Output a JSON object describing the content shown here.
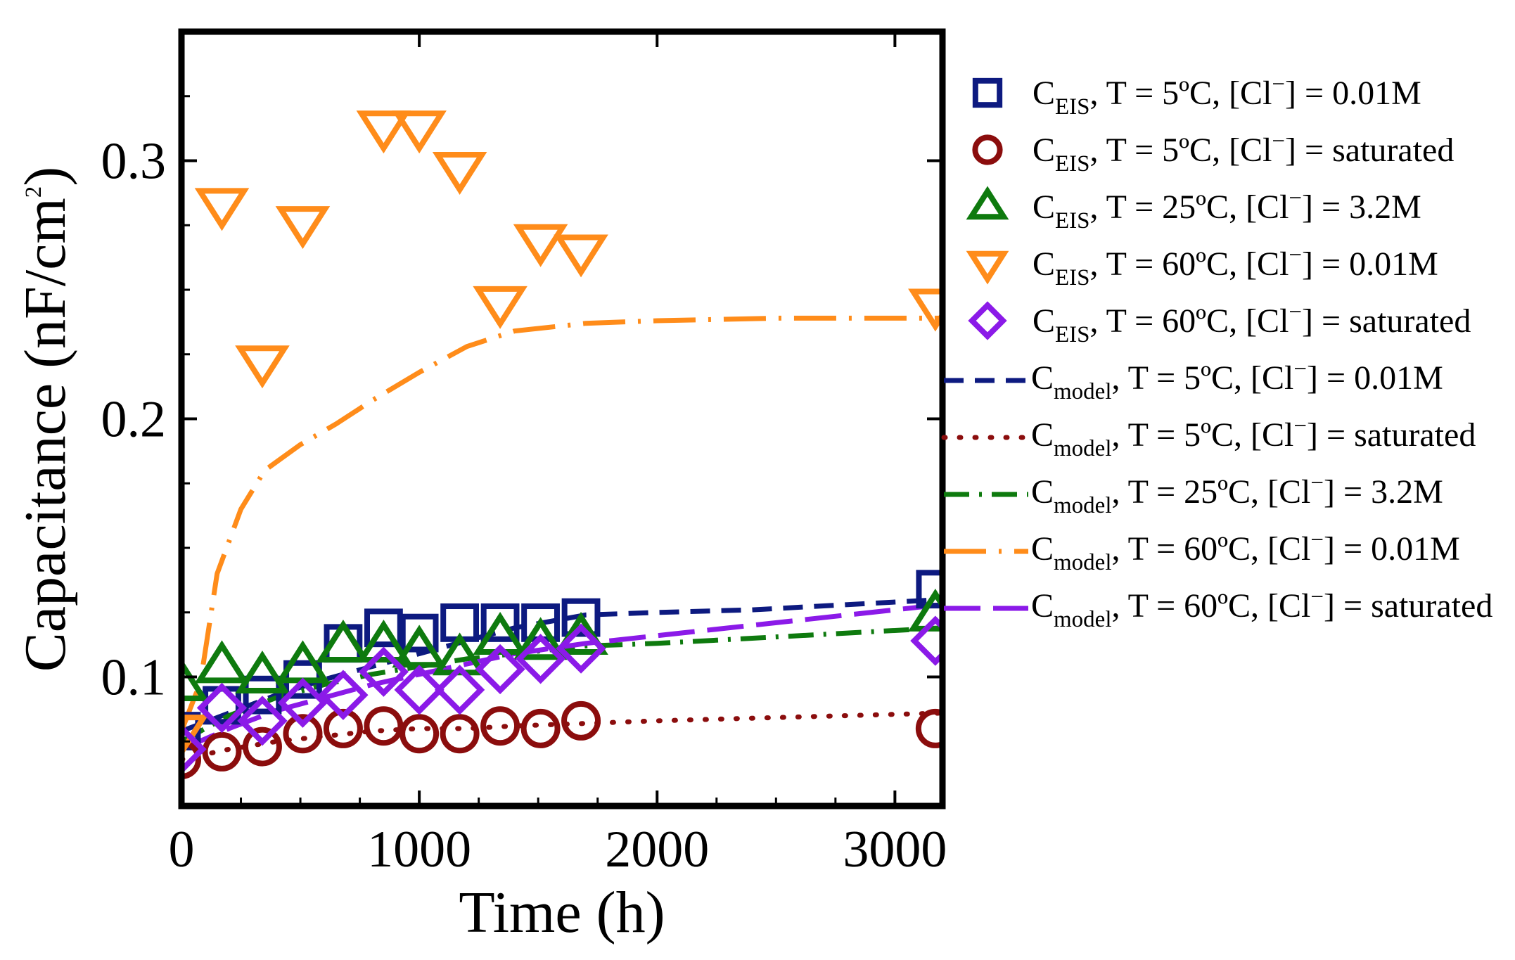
{
  "chart_data": {
    "type": "scatter",
    "xlabel": "Time (h)",
    "ylabel_main": "Capacitance (nF/cm",
    "ylabel_sup": "2",
    "ylabel_end": ")",
    "xlim": [
      0,
      3200
    ],
    "ylim": [
      0.05,
      0.35
    ],
    "xticks": [
      0,
      1000,
      2000,
      3000
    ],
    "xtick_labels": [
      "0",
      "1000",
      "2000",
      "3000"
    ],
    "yticks": [
      0.1,
      0.2,
      0.3
    ],
    "ytick_labels": [
      "0.1",
      "0.2",
      "0.3"
    ],
    "legend_position": "right-outside",
    "series": [
      {
        "name": "C_EIS, T = 5ºC, [Cl⁻] = 0.01M",
        "label_main": "C",
        "label_sub": "EIS",
        "label_rest": ", T = 5ºC, [Cl",
        "label_sup": "−",
        "label_end": "] = 0.01M",
        "kind": "marker",
        "marker": "square",
        "color": "#0d1a80",
        "x": [
          0,
          170,
          340,
          510,
          680,
          850,
          1000,
          1170,
          1340,
          1510,
          1680,
          3170
        ],
        "y": [
          0.079,
          0.089,
          0.093,
          0.099,
          0.113,
          0.119,
          0.117,
          0.121,
          0.121,
          0.121,
          0.123,
          0.134
        ]
      },
      {
        "name": "C_EIS, T = 5ºC, [Cl⁻] = saturated",
        "label_main": "C",
        "label_sub": "EIS",
        "label_rest": ", T = 5ºC, [Cl",
        "label_sup": "−",
        "label_end": "] = saturated",
        "kind": "marker",
        "marker": "circle",
        "color": "#8b0d0d",
        "x": [
          0,
          170,
          340,
          510,
          680,
          850,
          1000,
          1170,
          1340,
          1510,
          1680,
          3170
        ],
        "y": [
          0.068,
          0.071,
          0.073,
          0.078,
          0.08,
          0.081,
          0.078,
          0.078,
          0.081,
          0.08,
          0.083,
          0.08
        ]
      },
      {
        "name": "C_EIS, T = 25ºC, [Cl⁻] = 3.2M",
        "label_main": "C",
        "label_sub": "EIS",
        "label_rest": ", T = 25ºC, [Cl",
        "label_sup": "−",
        "label_end": "] = 3.2M",
        "kind": "marker",
        "marker": "triangle-up",
        "color": "#0e7a0e",
        "x": [
          0,
          170,
          340,
          510,
          680,
          850,
          1000,
          1170,
          1340,
          1510,
          1680,
          3170
        ],
        "y": [
          0.097,
          0.104,
          0.1,
          0.104,
          0.112,
          0.112,
          0.11,
          0.107,
          0.115,
          0.113,
          0.115,
          0.124
        ]
      },
      {
        "name": "C_EIS, T = 60ºC, [Cl⁻] = 0.01M",
        "label_main": "C",
        "label_sub": "EIS",
        "label_rest": ", T = 60ºC, [Cl",
        "label_sup": "−",
        "label_end": "] = 0.01M",
        "kind": "marker",
        "marker": "triangle-down",
        "color": "#ff8c1a",
        "x": [
          0,
          170,
          340,
          510,
          850,
          1000,
          1170,
          1340,
          1510,
          1680,
          3170
        ],
        "y": [
          0.079,
          0.283,
          0.222,
          0.276,
          0.313,
          0.313,
          0.297,
          0.245,
          0.269,
          0.265,
          0.244
        ]
      },
      {
        "name": "C_EIS, T = 60ºC, [Cl⁻] = saturated",
        "label_main": "C",
        "label_sub": "EIS",
        "label_rest": ", T = 60ºC, [Cl",
        "label_sup": "−",
        "label_end": "] = saturated",
        "kind": "marker",
        "marker": "diamond",
        "color": "#8b1ae8",
        "x": [
          0,
          170,
          340,
          510,
          680,
          850,
          1000,
          1170,
          1340,
          1510,
          1680,
          3170
        ],
        "y": [
          0.072,
          0.088,
          0.083,
          0.09,
          0.093,
          0.102,
          0.095,
          0.095,
          0.103,
          0.107,
          0.111,
          0.114
        ]
      },
      {
        "name": "C_model, T = 5ºC, [Cl⁻] = 0.01M",
        "label_main": "C",
        "label_sub": "model",
        "label_rest": ", T = 5ºC, [Cl",
        "label_sup": "−",
        "label_end": "] = 0.01M",
        "kind": "line",
        "dash": "dashed",
        "color": "#0d1a80",
        "x": [
          0,
          200,
          400,
          600,
          800,
          1000,
          1200,
          1400,
          1700,
          2000,
          2400,
          2800,
          3200
        ],
        "y": [
          0.079,
          0.086,
          0.093,
          0.099,
          0.104,
          0.109,
          0.114,
          0.119,
          0.124,
          0.125,
          0.126,
          0.128,
          0.13
        ]
      },
      {
        "name": "C_model, T = 5ºC, [Cl⁻] = saturated",
        "label_main": "C",
        "label_sub": "model",
        "label_rest": ", T = 5ºC, [Cl",
        "label_sup": "−",
        "label_end": "] = saturated",
        "kind": "line",
        "dash": "dotted",
        "color": "#8b0d0d",
        "x": [
          0,
          200,
          400,
          600,
          800,
          1000,
          1200,
          1400,
          1700,
          2000,
          2400,
          2800,
          3200
        ],
        "y": [
          0.068,
          0.072,
          0.075,
          0.077,
          0.079,
          0.08,
          0.08,
          0.081,
          0.082,
          0.083,
          0.084,
          0.085,
          0.086
        ]
      },
      {
        "name": "C_model, T = 25ºC, [Cl⁻] = 3.2M",
        "label_main": "C",
        "label_sub": "model",
        "label_rest": ", T = 25ºC, [Cl",
        "label_sup": "−",
        "label_end": "] = 3.2M",
        "kind": "line",
        "dash": "dashdot",
        "color": "#0e7a0e",
        "x": [
          0,
          200,
          400,
          600,
          800,
          1000,
          1200,
          1400,
          1700,
          2000,
          2400,
          2800,
          3200
        ],
        "y": [
          0.075,
          0.085,
          0.092,
          0.097,
          0.101,
          0.104,
          0.107,
          0.109,
          0.112,
          0.113,
          0.115,
          0.117,
          0.119
        ]
      },
      {
        "name": "C_model, T = 60ºC, [Cl⁻] = 0.01M",
        "label_main": "C",
        "label_sub": "model",
        "label_rest": ", T = 60ºC, [Cl",
        "label_sup": "−",
        "label_end": "] = 0.01M",
        "kind": "line",
        "dash": "longdashdot",
        "color": "#ff8c1a",
        "x": [
          0,
          80,
          150,
          250,
          350,
          500,
          650,
          800,
          1000,
          1200,
          1400,
          1700,
          2000,
          2500,
          3200
        ],
        "y": [
          0.079,
          0.098,
          0.14,
          0.165,
          0.18,
          0.19,
          0.198,
          0.207,
          0.218,
          0.228,
          0.234,
          0.237,
          0.238,
          0.239,
          0.239
        ]
      },
      {
        "name": "C_model, T = 60ºC, [Cl⁻] = saturated",
        "label_main": "C",
        "label_sub": "model",
        "label_rest": ", T = 60ºC, [Cl",
        "label_sup": "−",
        "label_end": "] = saturated",
        "kind": "line",
        "dash": "longdash",
        "color": "#8b1ae8",
        "x": [
          0,
          200,
          400,
          600,
          800,
          1000,
          1200,
          1400,
          1700,
          2000,
          2400,
          2800,
          3200
        ],
        "y": [
          0.072,
          0.08,
          0.087,
          0.092,
          0.097,
          0.101,
          0.105,
          0.109,
          0.113,
          0.116,
          0.12,
          0.124,
          0.128
        ]
      }
    ]
  }
}
